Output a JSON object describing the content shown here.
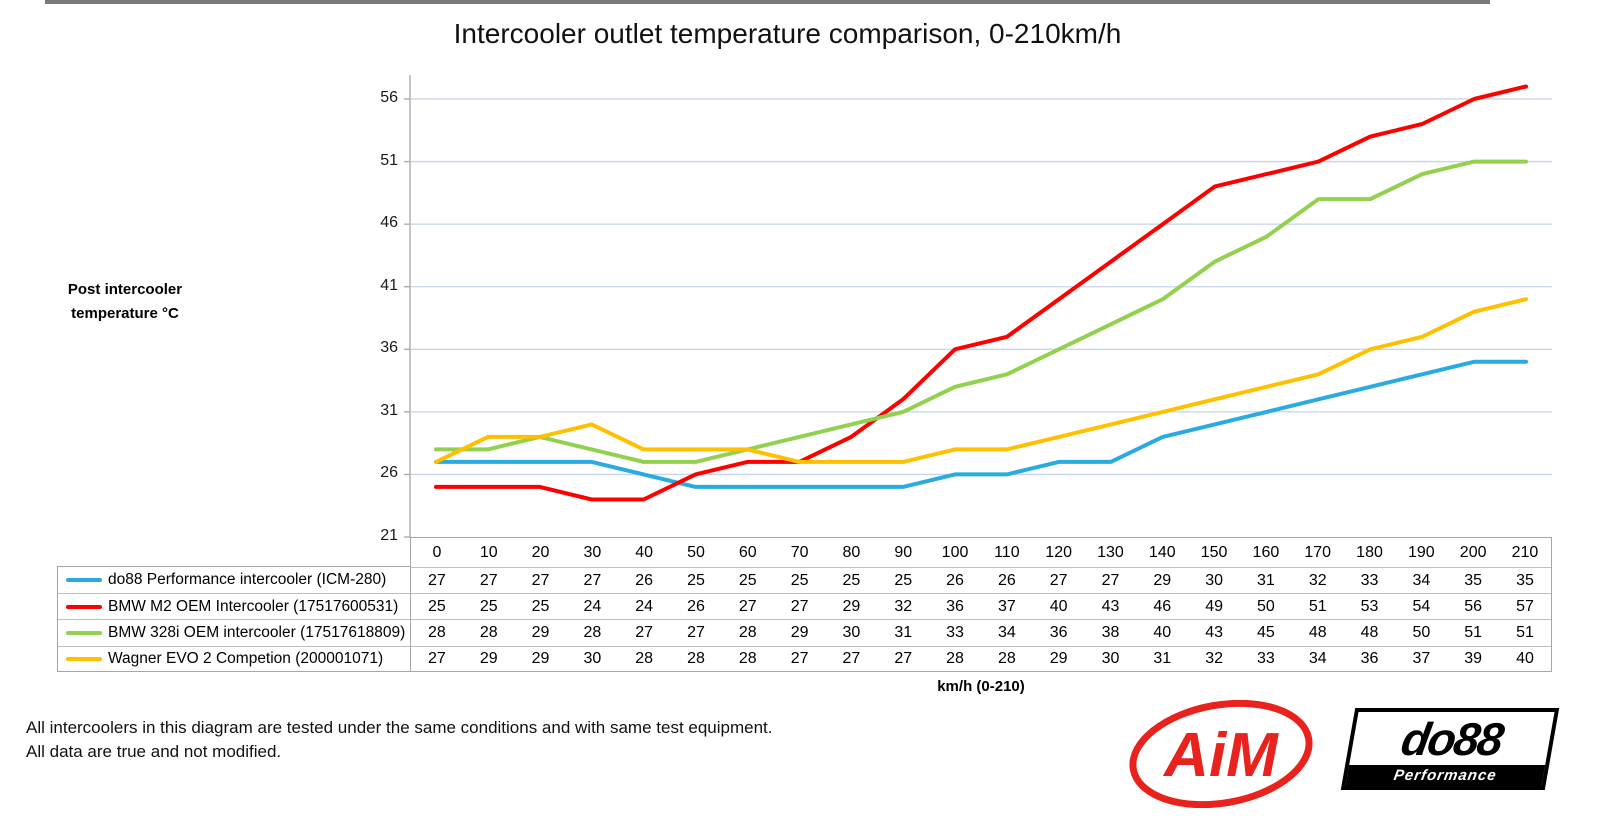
{
  "title": "Intercooler outlet temperature comparison, 0-210km/h",
  "y_axis_label_line1": "Post intercooler",
  "y_axis_label_line2": "temperature °C",
  "x_axis_label": "km/h (0-210)",
  "footer": {
    "line1": "All intercoolers in this diagram are tested under the same conditions and with same test equipment.",
    "line2": "All data are true and not modified."
  },
  "logos": {
    "aim_text": "AiM",
    "aim_color": "#e8231e",
    "do88_text": "do88",
    "do88_sub": "Performance"
  },
  "colors": {
    "gridline": "#c6d4ee",
    "axis": "#a6a6a6",
    "table_line": "#bfbfbf"
  },
  "chart_data": {
    "type": "line",
    "title": "Intercooler outlet temperature comparison, 0-210km/h",
    "xlabel": "km/h (0-210)",
    "ylabel": "Post intercooler temperature °C",
    "x": [
      0,
      10,
      20,
      30,
      40,
      50,
      60,
      70,
      80,
      90,
      100,
      110,
      120,
      130,
      140,
      150,
      160,
      170,
      180,
      190,
      200,
      210
    ],
    "y_ticks": [
      21,
      26,
      31,
      36,
      41,
      46,
      51,
      56
    ],
    "ylim": [
      21,
      58.5
    ],
    "grid": true,
    "legend_position": "bottom-left-table",
    "series": [
      {
        "name": "do88 Performance intercooler (ICM-280)",
        "color": "#29abe2",
        "values": [
          27,
          27,
          27,
          27,
          26,
          25,
          25,
          25,
          25,
          25,
          26,
          26,
          27,
          27,
          29,
          30,
          31,
          32,
          33,
          34,
          35,
          35
        ]
      },
      {
        "name": "BMW M2 OEM Intercooler (17517600531)",
        "color": "#fe0000",
        "values": [
          25,
          25,
          25,
          24,
          24,
          26,
          27,
          27,
          29,
          32,
          36,
          37,
          40,
          43,
          46,
          49,
          50,
          51,
          53,
          54,
          56,
          57
        ]
      },
      {
        "name": "BMW 328i OEM intercooler (17517618809)",
        "color": "#92d050",
        "values": [
          28,
          28,
          29,
          28,
          27,
          27,
          28,
          29,
          30,
          31,
          33,
          34,
          36,
          38,
          40,
          43,
          45,
          48,
          48,
          50,
          51,
          51
        ]
      },
      {
        "name": "Wagner EVO 2 Competion (200001071)",
        "color": "#ffc000",
        "values": [
          27,
          29,
          29,
          30,
          28,
          28,
          28,
          27,
          27,
          27,
          28,
          28,
          29,
          30,
          31,
          32,
          33,
          34,
          36,
          37,
          39,
          40
        ]
      }
    ]
  }
}
